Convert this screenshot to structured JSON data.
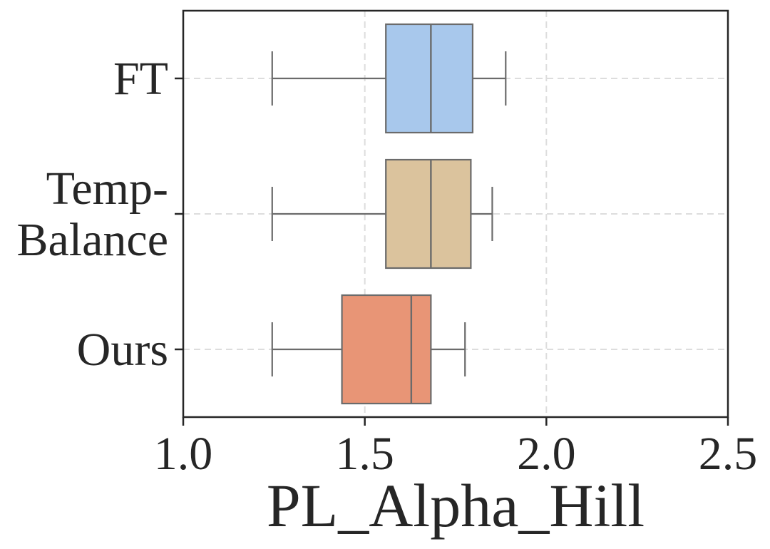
{
  "chart_data": {
    "type": "boxplot",
    "orientation": "horizontal",
    "xlabel": "PL_Alpha_Hill",
    "ylabel": "",
    "xlim": [
      1.0,
      2.5
    ],
    "xticks": [
      1.0,
      1.5,
      2.0,
      2.5
    ],
    "xtick_labels": [
      "1.0",
      "1.5",
      "2.0",
      "2.5"
    ],
    "grid": true,
    "categories": [
      "FT",
      "Temp-Balance",
      "Ours"
    ],
    "category_label_lines": [
      [
        "FT"
      ],
      [
        "Temp-",
        "Balance"
      ],
      [
        "Ours"
      ]
    ],
    "series": [
      {
        "name": "FT",
        "whisker_low": 1.245,
        "q1": 1.558,
        "median": 1.682,
        "q3": 1.797,
        "whisker_high": 1.888,
        "color": "#a8c8ec"
      },
      {
        "name": "Temp-Balance",
        "whisker_low": 1.245,
        "q1": 1.558,
        "median": 1.682,
        "q3": 1.792,
        "whisker_high": 1.851,
        "color": "#dbc39d"
      },
      {
        "name": "Ours",
        "whisker_low": 1.245,
        "q1": 1.437,
        "median": 1.628,
        "q3": 1.682,
        "whisker_high": 1.776,
        "color": "#e89576"
      }
    ],
    "line_color": "#6b6b6b",
    "axis_color": "#262626",
    "grid_color": "#dddddd"
  }
}
